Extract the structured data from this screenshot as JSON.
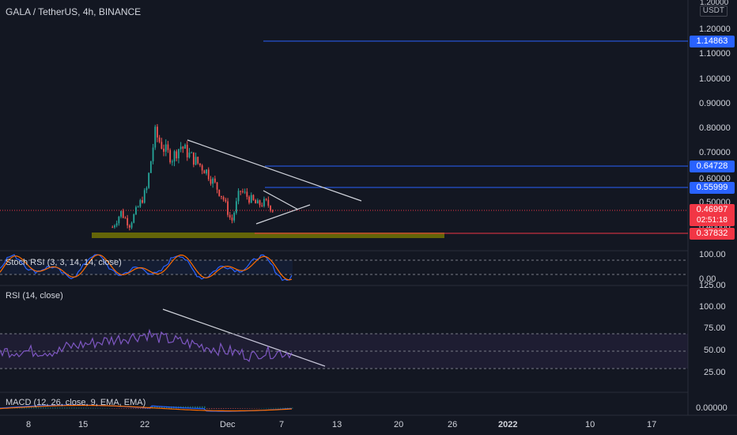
{
  "header": {
    "symbol": "GALA / TetherUS, 4h, BINANCE",
    "currency": "USDT"
  },
  "price_axis": {
    "ticks": [
      "1.20000",
      "1.10000",
      "1.00000",
      "0.90000",
      "0.80000",
      "0.70000",
      "0.60000",
      "0.50000",
      "0.40000"
    ],
    "tag_top_partial": "1.20000"
  },
  "levels": [
    {
      "label": "1.14863",
      "value": 1.14863,
      "color": "#2962ff"
    },
    {
      "label": "0.64728",
      "value": 0.64728,
      "color": "#2962ff"
    },
    {
      "label": "0.55999",
      "value": 0.55999,
      "color": "#2962ff"
    },
    {
      "label": "0.37832",
      "value": 0.37832,
      "color": "#f23645"
    }
  ],
  "last_price": {
    "label": "0.46997",
    "countdown": "02:51:18",
    "color": "#f23645"
  },
  "time_axis": {
    "ticks": [
      "8",
      "15",
      "22",
      "Dec",
      "7",
      "13",
      "20",
      "26",
      "2022",
      "10",
      "17"
    ]
  },
  "stoch_rsi": {
    "title": "Stoch RSI (3, 3, 14, 14, close)",
    "ticks": [
      "100.00",
      "0.00"
    ]
  },
  "rsi": {
    "title": "RSI (14, close)",
    "ticks": [
      "125.00",
      "100.00",
      "75.00",
      "50.00",
      "25.00"
    ]
  },
  "macd": {
    "title": "MACD (12, 26, close, 9, EMA, EMA)",
    "ticks": [
      "0.00000"
    ]
  },
  "colors": {
    "background": "#131722",
    "up": "#26a69a",
    "down": "#ef5350",
    "trendline": "#d1d4dc",
    "support_zone": "#808000"
  },
  "chart_data": {
    "type": "candlestick",
    "title": "GALA / TetherUS, 4h, BINANCE",
    "ylim": [
      0.35,
      1.24
    ],
    "price_points_approx": [
      {
        "x": "Nov 19",
        "y": 0.4
      },
      {
        "x": "Nov 20",
        "y": 0.46
      },
      {
        "x": "Nov 21",
        "y": 0.41
      },
      {
        "x": "Nov 23",
        "y": 0.55
      },
      {
        "x": "Nov 24",
        "y": 0.78
      },
      {
        "x": "Nov 25",
        "y": 0.72
      },
      {
        "x": "Nov 26",
        "y": 0.68
      },
      {
        "x": "Nov 27",
        "y": 0.73
      },
      {
        "x": "Nov 29",
        "y": 0.66
      },
      {
        "x": "Nov 30",
        "y": 0.63
      },
      {
        "x": "Dec 2",
        "y": 0.52
      },
      {
        "x": "Dec 3",
        "y": 0.42
      },
      {
        "x": "Dec 4",
        "y": 0.55
      },
      {
        "x": "Dec 6",
        "y": 0.49
      },
      {
        "x": "Dec 7",
        "y": 0.5
      },
      {
        "x": "Dec 8",
        "y": 0.47
      }
    ],
    "horizontal_levels": [
      1.14863,
      0.64728,
      0.55999,
      0.37832
    ],
    "last_price": 0.46997
  }
}
